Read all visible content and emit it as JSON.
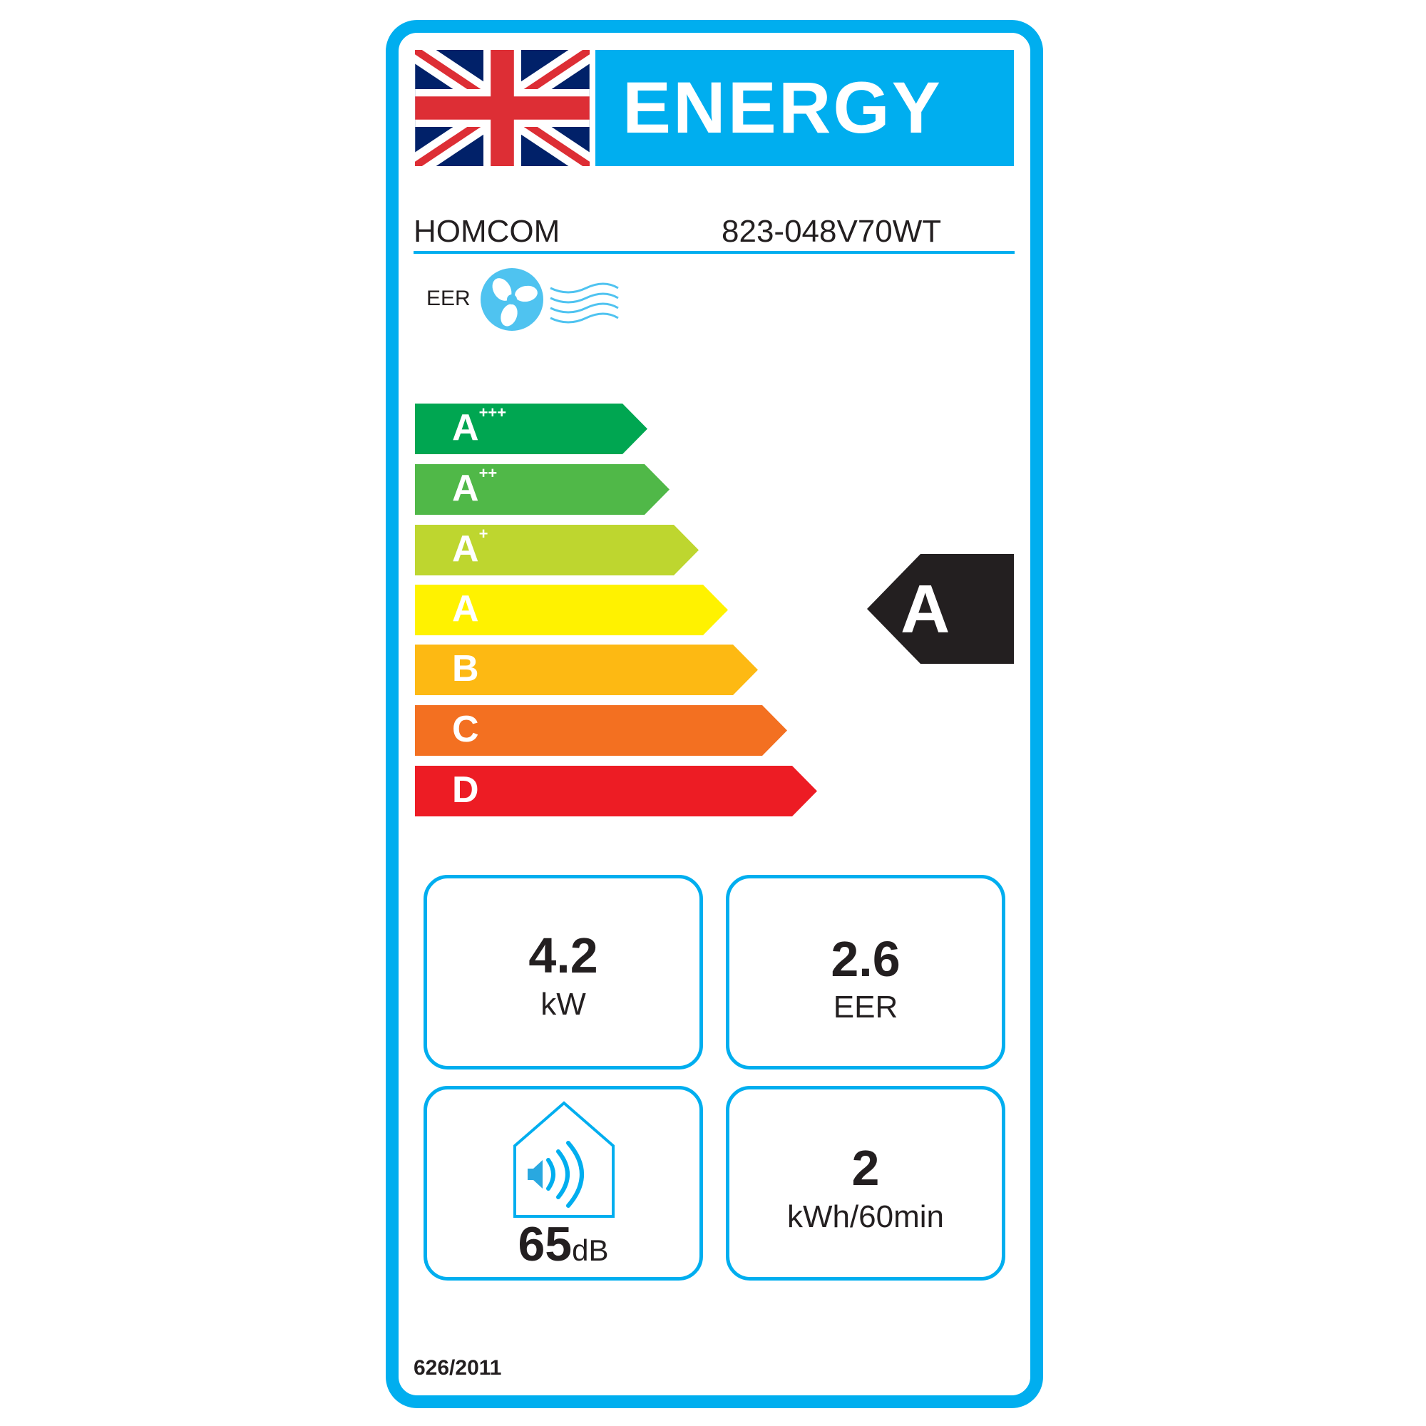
{
  "header": {
    "title": "ENERGY",
    "flag_icon": "uk-flag-icon"
  },
  "supplier": "HOMCOM",
  "model": "823-048V70WT",
  "function": {
    "label": "EER",
    "icon": "fan-cooling-icon"
  },
  "scale": [
    {
      "letter": "A",
      "sup": "+++",
      "color": "#00a651"
    },
    {
      "letter": "A",
      "sup": "++",
      "color": "#50b848"
    },
    {
      "letter": "A",
      "sup": "+",
      "color": "#bed62f"
    },
    {
      "letter": "A",
      "sup": "",
      "color": "#fff200"
    },
    {
      "letter": "B",
      "sup": "",
      "color": "#fdb913"
    },
    {
      "letter": "C",
      "sup": "",
      "color": "#f37021"
    },
    {
      "letter": "D",
      "sup": "",
      "color": "#ed1c24"
    }
  ],
  "rating": "A",
  "info": {
    "capacity": {
      "value": "4.2",
      "unit": "kW"
    },
    "eer": {
      "value": "2.6",
      "unit": "EER"
    },
    "noise": {
      "value": "65",
      "unit": "dB",
      "icon": "house-speaker-icon"
    },
    "consumption": {
      "value": "2",
      "unit": "kWh/60min"
    }
  },
  "regulation": "626/2011",
  "colors": {
    "frame": "#00aeef",
    "rating": "#231f20"
  }
}
